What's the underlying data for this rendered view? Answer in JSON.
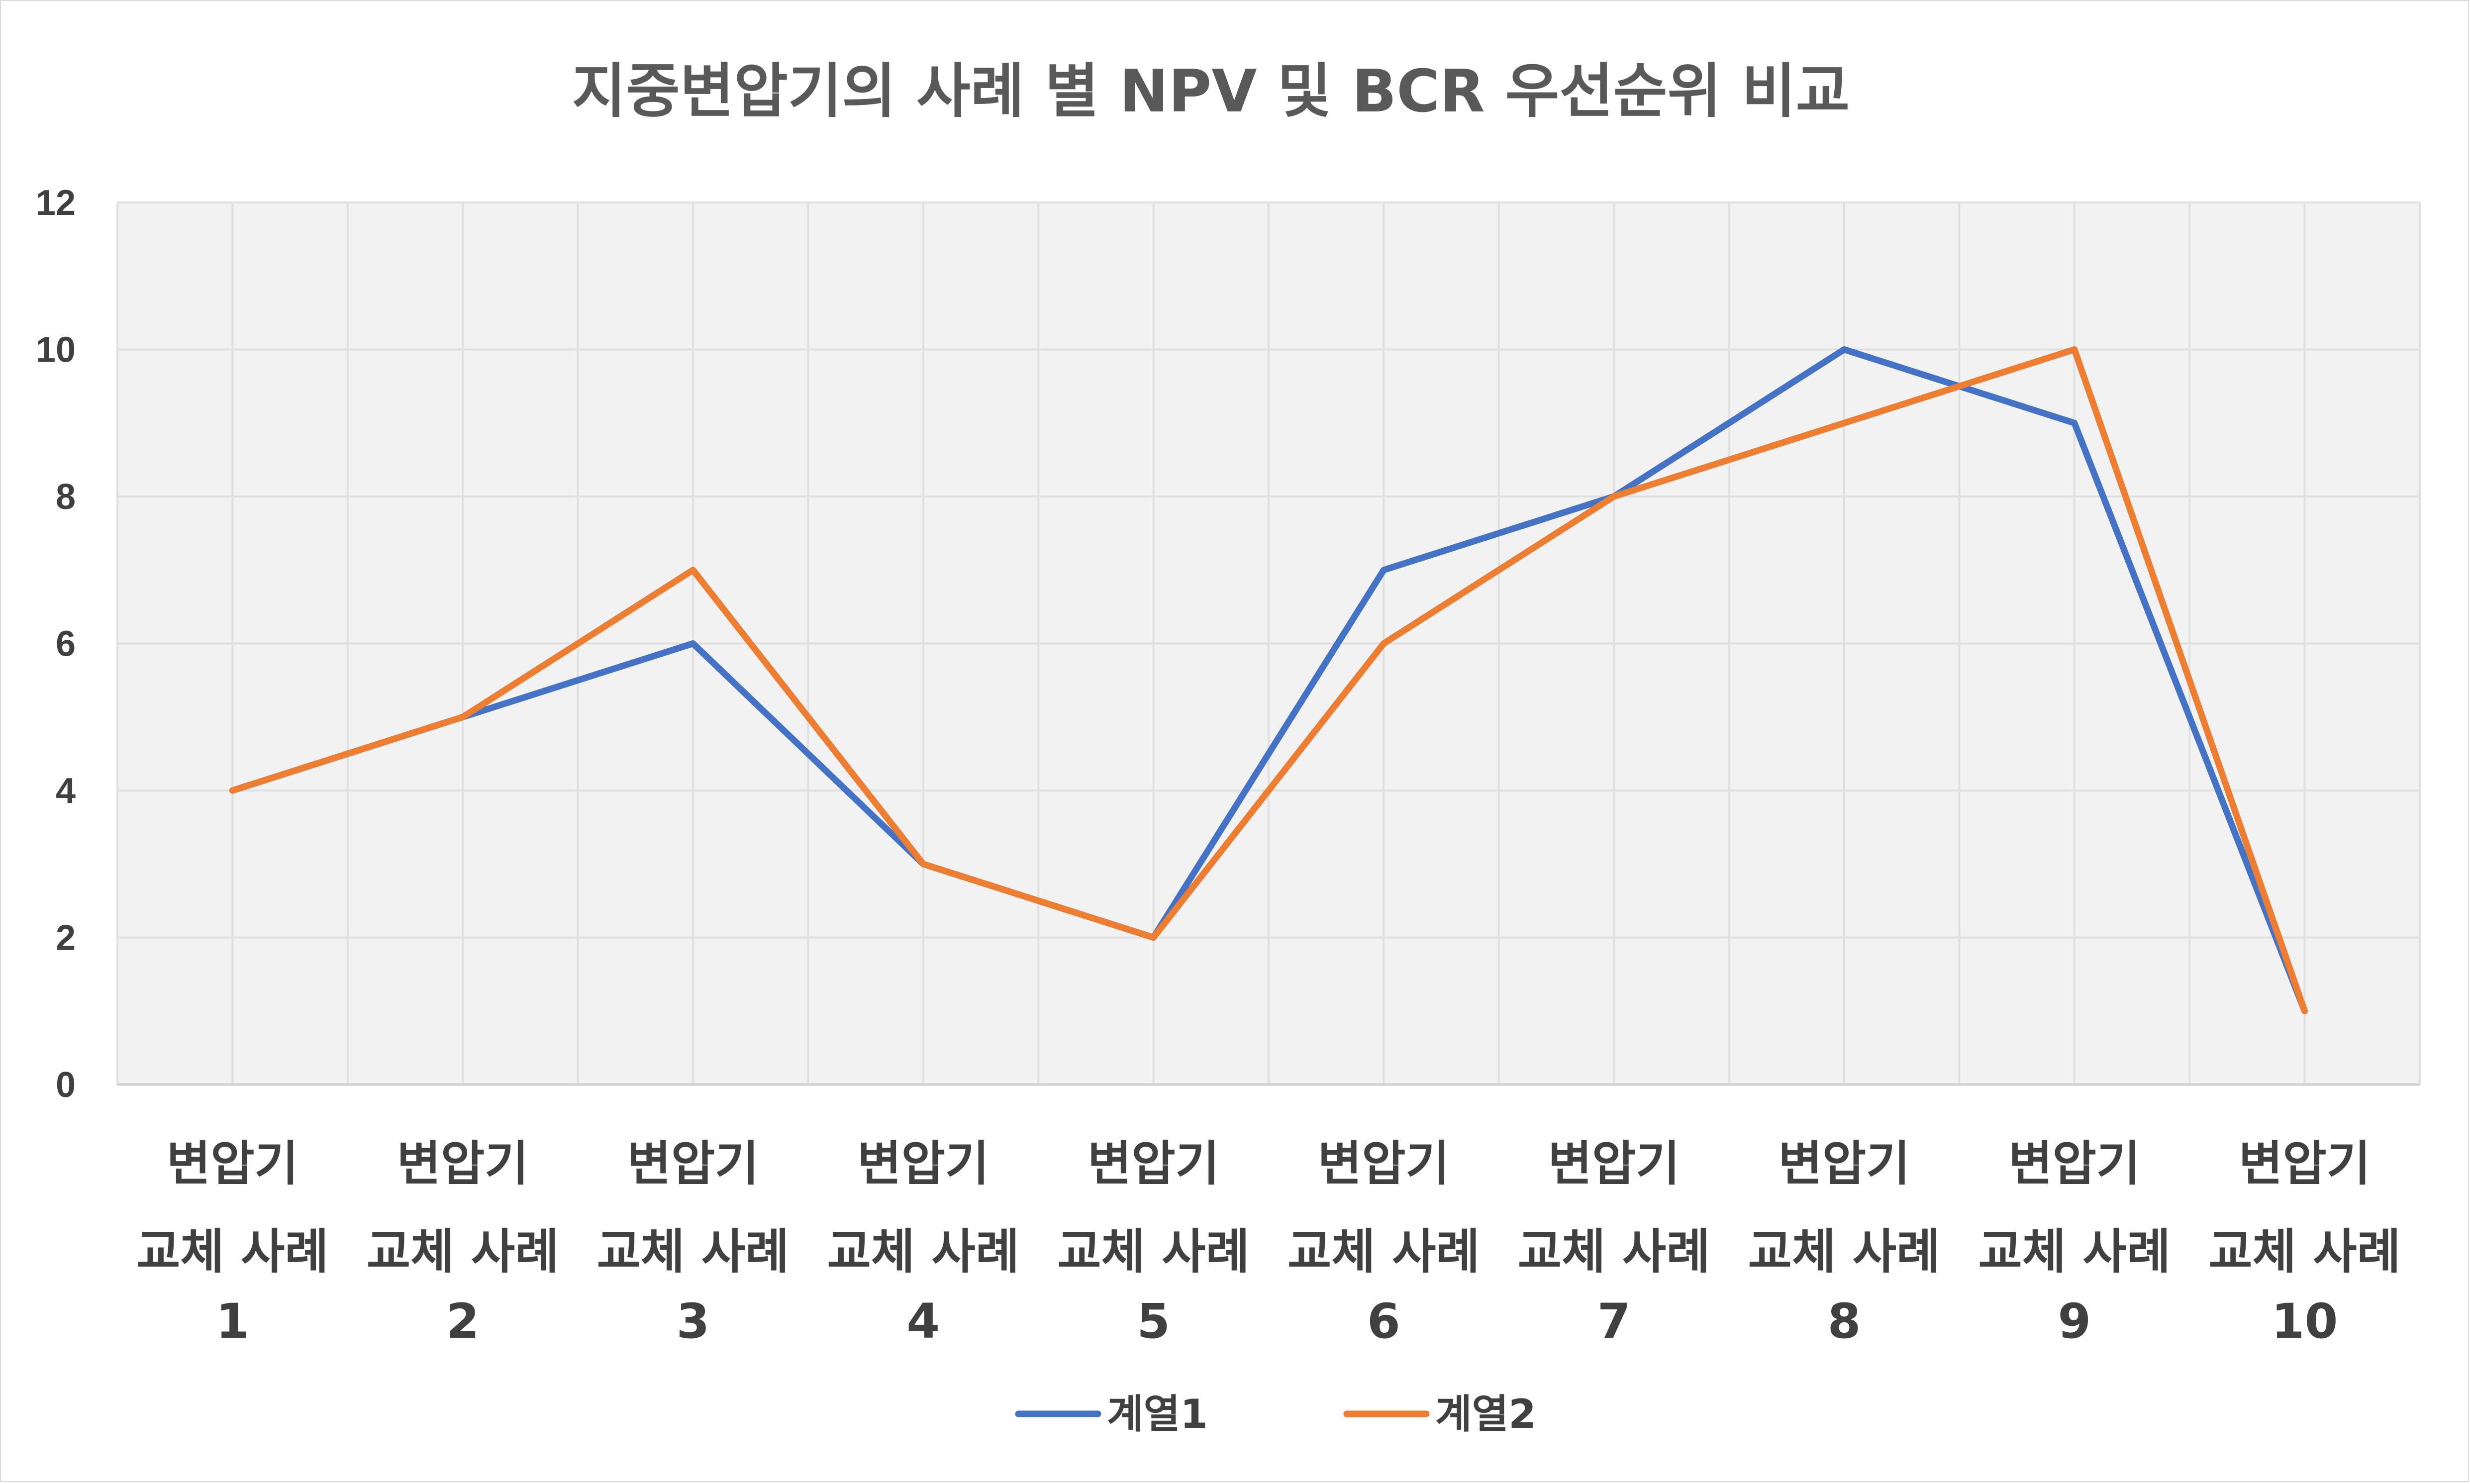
{
  "chart_data": {
    "type": "line",
    "title": "지중변압기의 사례 별 NPV 및 BCR 우선순위 비교",
    "categories": [
      [
        "변압기",
        "교체 사례",
        "1"
      ],
      [
        "변압기",
        "교체 사례",
        "2"
      ],
      [
        "변압기",
        "교체 사례",
        "3"
      ],
      [
        "변압기",
        "교체 사례",
        "4"
      ],
      [
        "변압기",
        "교체 사례",
        "5"
      ],
      [
        "변압기",
        "교체 사례",
        "6"
      ],
      [
        "변압기",
        "교체 사례",
        "7"
      ],
      [
        "변압기",
        "교체 사례",
        "8"
      ],
      [
        "변압기",
        "교체 사례",
        "9"
      ],
      [
        "변압기",
        "교체 사례",
        "10"
      ]
    ],
    "series": [
      {
        "name": "계열1",
        "color": "#4472c4",
        "values": [
          4,
          5,
          6,
          3,
          2,
          7,
          8,
          10,
          9,
          1
        ]
      },
      {
        "name": "계열2",
        "color": "#ed7d31",
        "values": [
          4,
          5,
          7,
          3,
          2,
          6,
          8,
          9,
          10,
          1
        ]
      }
    ],
    "ylim": [
      0,
      12
    ],
    "yticks": [
      0,
      2,
      4,
      6,
      8,
      10,
      12
    ],
    "xlabel": "",
    "ylabel": "",
    "grid": true,
    "legend": "bottom",
    "plot_background": "#f2f2f2",
    "grid_color": "#e0e0e0"
  }
}
